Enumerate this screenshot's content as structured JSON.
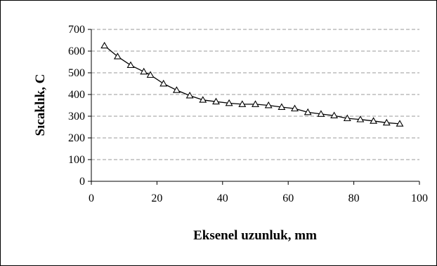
{
  "chart_data": {
    "type": "line",
    "title": "",
    "xlabel": "Eksenel uzunluk, mm",
    "ylabel": "Sıcaklık, C",
    "xlim": [
      0,
      100
    ],
    "ylim": [
      0,
      700
    ],
    "xticks": [
      0,
      20,
      40,
      60,
      80,
      100
    ],
    "yticks": [
      0,
      100,
      200,
      300,
      400,
      500,
      600,
      700
    ],
    "grid": "horizontal-dashed",
    "legend": "none",
    "marker": "open-triangle",
    "line_color": "#000000",
    "series": [
      {
        "x": [
          4,
          8,
          12,
          16,
          18,
          22,
          26,
          30,
          34,
          38,
          42,
          46,
          50,
          54,
          58,
          62,
          66,
          70,
          74,
          78,
          82,
          86,
          90,
          94
        ],
        "values": [
          625,
          575,
          535,
          505,
          490,
          450,
          420,
          395,
          375,
          367,
          360,
          355,
          355,
          350,
          342,
          335,
          318,
          310,
          303,
          290,
          285,
          278,
          270,
          265
        ]
      }
    ]
  }
}
